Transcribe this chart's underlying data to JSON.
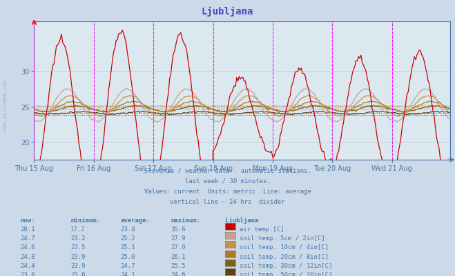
{
  "title": "Ljubljana",
  "bg_color": "#ccd9e8",
  "plot_bg_color": "#dce8f0",
  "title_color": "#4444cc",
  "text_color": "#4477aa",
  "grid_color": "#b8c8d8",
  "xlabel_dates": [
    "Thu 15 Aug",
    "Fri 16 Aug",
    "Sat 17 Aug",
    "Sun 18 Aug",
    "Mon 19 Aug",
    "Tue 20 Aug",
    "Wed 21 Aug"
  ],
  "ylim": [
    17.5,
    37
  ],
  "yticks": [
    20,
    25,
    30
  ],
  "series_order": [
    "air_temp",
    "soil_5cm",
    "soil_10cm",
    "soil_20cm",
    "soil_30cm",
    "soil_50cm"
  ],
  "series": {
    "air_temp": {
      "color": "#cc0000",
      "avg": 23.8,
      "min": 17.7,
      "max": 35.6,
      "now": 20.1
    },
    "soil_5cm": {
      "color": "#c8a090",
      "avg": 25.2,
      "min": 23.2,
      "max": 27.9,
      "now": 24.7
    },
    "soil_10cm": {
      "color": "#c89040",
      "avg": 25.1,
      "min": 23.5,
      "max": 27.0,
      "now": 24.8
    },
    "soil_20cm": {
      "color": "#b07820",
      "avg": 25.0,
      "min": 23.9,
      "max": 26.1,
      "now": 24.8
    },
    "soil_30cm": {
      "color": "#806018",
      "avg": 24.7,
      "min": 23.9,
      "max": 25.5,
      "now": 24.4
    },
    "soil_50cm": {
      "color": "#604010",
      "avg": 24.1,
      "min": 23.6,
      "max": 24.6,
      "now": 23.8
    }
  },
  "subtitle_lines": [
    "Slovenia / weather data - automatic stations.",
    "last week / 30 minutes.",
    "Values: current  Units: metric  Line: average",
    "vertical line - 24 hrs  divider"
  ],
  "table_header": [
    "now:",
    "minimum:",
    "average:",
    "maximum:",
    "Ljubljana"
  ],
  "table_rows": [
    {
      "now": "20.1",
      "min": "17.7",
      "avg": "23.8",
      "max": "35.6",
      "color": "#cc0000",
      "label": "air temp.[C]"
    },
    {
      "now": "24.7",
      "min": "23.2",
      "avg": "25.2",
      "max": "27.9",
      "color": "#c8a090",
      "label": "soil temp. 5cm / 2in[C]"
    },
    {
      "now": "24.8",
      "min": "23.5",
      "avg": "25.1",
      "max": "27.0",
      "color": "#c89040",
      "label": "soil temp. 10cm / 4in[C]"
    },
    {
      "now": "24.8",
      "min": "23.9",
      "avg": "25.0",
      "max": "26.1",
      "color": "#b07820",
      "label": "soil temp. 20cm / 8in[C]"
    },
    {
      "now": "24.4",
      "min": "23.9",
      "avg": "24.7",
      "max": "25.5",
      "color": "#806018",
      "label": "soil temp. 30cm / 12in[C]"
    },
    {
      "now": "23.8",
      "min": "23.6",
      "avg": "24.1",
      "max": "24.6",
      "color": "#604010",
      "label": "soil temp. 50cm / 20in[C]"
    }
  ],
  "n_points": 336,
  "days": 7,
  "day_multipliers_air": [
    1.25,
    1.4,
    1.35,
    0.6,
    0.75,
    0.95,
    1.05
  ]
}
